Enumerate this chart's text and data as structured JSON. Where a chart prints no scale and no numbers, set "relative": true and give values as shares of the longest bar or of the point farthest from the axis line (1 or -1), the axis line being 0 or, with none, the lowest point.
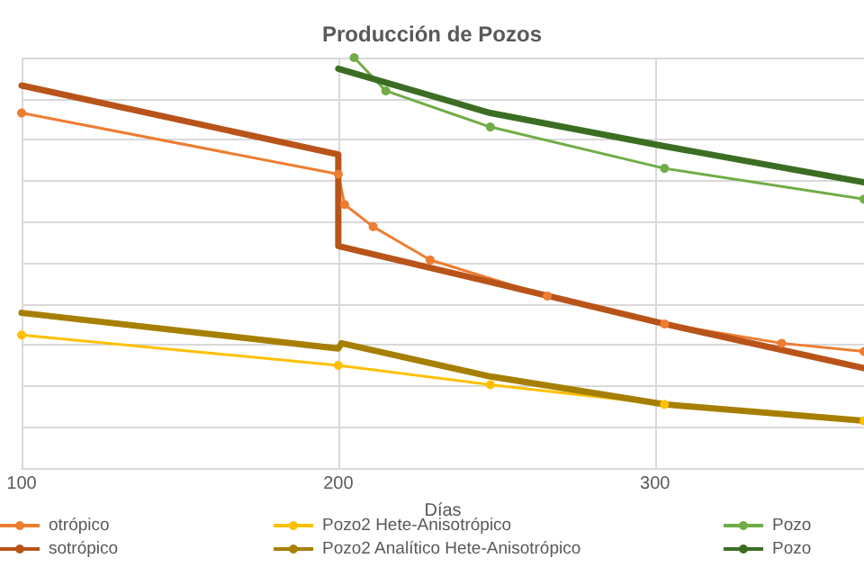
{
  "chart_data": {
    "type": "line",
    "title": "Producción de Pozos",
    "xlabel": "Días",
    "relative": true,
    "grid": true,
    "legend": "bottom",
    "xlim": [
      100,
      366
    ],
    "xticks": [
      100,
      200,
      300
    ],
    "series": [
      {
        "name": "otrópico",
        "color": "#ed7d31",
        "marker": "circle",
        "x": [
          100,
          200,
          202,
          211,
          229,
          266,
          303,
          340,
          366
        ],
        "values": [
          0.865,
          0.716,
          0.642,
          0.588,
          0.507,
          0.419,
          0.351,
          0.304,
          0.284
        ]
      },
      {
        "name": "sotrópico",
        "color": "#b8541a",
        "marker": "none",
        "x": [
          100,
          200,
          200,
          248,
          303,
          366
        ],
        "values": [
          0.932,
          0.764,
          0.541,
          0.453,
          0.351,
          0.243
        ]
      },
      {
        "name": "Pozo2 Hete-Anisotrópico",
        "color": "#ffc000",
        "marker": "circle",
        "x": [
          100,
          200,
          248,
          303,
          366
        ],
        "values": [
          0.324,
          0.25,
          0.203,
          0.155,
          0.115
        ]
      },
      {
        "name": "Pozo2 Analítico Hete-Anisotrópico",
        "color": "#a67f00",
        "marker": "none",
        "x": [
          100,
          200,
          201,
          248,
          303,
          366
        ],
        "values": [
          0.378,
          0.291,
          0.304,
          0.223,
          0.155,
          0.115
        ]
      },
      {
        "name": "Pozo",
        "color": "#70ad47",
        "marker": "circle",
        "x": [
          205,
          215,
          248,
          303,
          366
        ],
        "values": [
          1.0,
          0.919,
          0.831,
          0.73,
          0.655
        ]
      },
      {
        "name": "Pozo",
        "color": "#3b6e22",
        "marker": "none",
        "x": [
          200,
          248,
          303,
          366
        ],
        "values": [
          0.973,
          0.865,
          0.784,
          0.696
        ]
      }
    ]
  }
}
